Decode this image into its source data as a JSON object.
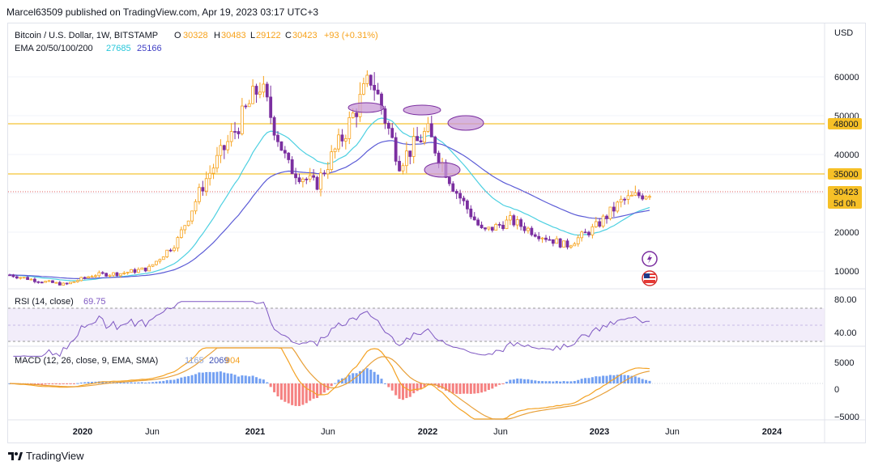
{
  "header": {
    "publisher": "Marcel63509 published on TradingView.com, Apr 19, 2023 03:17 UTC+3"
  },
  "symbol": {
    "name": "Bitcoin / U.S. Dollar, 1W, BITSTAMP",
    "o_label": "O",
    "o": "30328",
    "h_label": "H",
    "h": "30483",
    "l_label": "L",
    "l": "29122",
    "c_label": "C",
    "c": "30423",
    "change": "+93 (+0.31%)",
    "currency": "USD"
  },
  "ema_legend": {
    "label": "EMA 20/50/100/200",
    "v1": "27685",
    "v2": "25166"
  },
  "rsi_legend": {
    "label": "RSI (14, close)",
    "value": "69.75"
  },
  "macd_legend": {
    "label": "MACD (12, 26, close, 9, EMA, SMA)",
    "v1": "1165",
    "v2": "2069",
    "v3": "904"
  },
  "price_axis": {
    "ticks": [
      "60000",
      "50000",
      "40000",
      "30000",
      "20000",
      "10000"
    ]
  },
  "price_tags": {
    "level_high": "48000",
    "level_low": "35000",
    "last": "30423",
    "countdown": "5d 0h"
  },
  "rsi_axis": {
    "ticks": [
      "80.00",
      "40.00"
    ]
  },
  "macd_axis": {
    "ticks": [
      "5000",
      "0",
      "−5000"
    ]
  },
  "time_axis": {
    "labels": [
      "2020",
      "Jun",
      "2021",
      "Jun",
      "2022",
      "Jun",
      "2023",
      "Jun",
      "2024"
    ]
  },
  "footer": {
    "brand": "TradingView"
  },
  "colors": {
    "up": "#f7a21b",
    "down": "#7b2fa0",
    "ema_fast": "#4dd0e1",
    "ema_slow": "#5b5bd6",
    "level": "#f0b400",
    "macd_line": "#f4a223",
    "signal_line": "#e8a03a"
  },
  "chart_data": {
    "type": "line",
    "title": "Bitcoin / U.S. Dollar, 1W, BITSTAMP",
    "x_label_dates": [
      "2020",
      "Jun",
      "2021",
      "Jun",
      "2022",
      "Jun",
      "2023",
      "Jun",
      "2024"
    ],
    "ylim": [
      5000,
      70000
    ],
    "horizontal_levels": [
      48000,
      35000
    ],
    "series": [
      {
        "name": "",
        "role": "weekly-close-approx",
        "x": [
          "2019-11",
          "2020-01",
          "2020-03",
          "2020-05",
          "2020-07",
          "2020-09",
          "2020-11",
          "2021-01",
          "2021-02",
          "2021-04",
          "2021-05",
          "2021-07",
          "2021-09",
          "2021-11",
          "2022-01",
          "2022-03",
          "2022-05",
          "2022-06",
          "2022-08",
          "2022-10",
          "2022-11",
          "2023-01",
          "2023-03",
          "2023-04"
        ],
        "values": [
          9000,
          7500,
          6500,
          9000,
          9400,
          10700,
          17500,
          33000,
          45000,
          58000,
          37000,
          32000,
          45000,
          60000,
          38000,
          46000,
          31000,
          20000,
          23000,
          19500,
          16500,
          21000,
          28000,
          30423
        ]
      },
      {
        "name": "EMA",
        "value": 27685
      },
      {
        "name": "EMA",
        "value": 25166
      }
    ],
    "rsi": {
      "value": 69.75,
      "levels": [
        80,
        40
      ],
      "ylim": [
        30,
        85
      ]
    },
    "macd": {
      "values": [
        1165,
        2069,
        904
      ],
      "ylim": [
        -5500,
        6000
      ]
    }
  }
}
